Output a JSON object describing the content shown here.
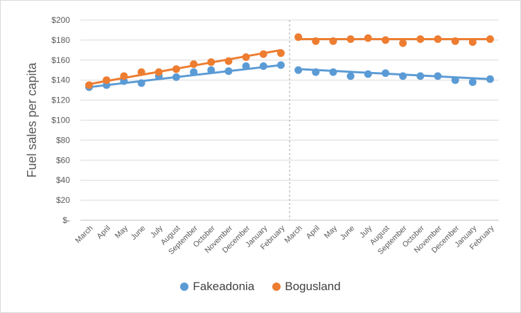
{
  "chart_data": {
    "type": "line",
    "ylabel": "Fuel sales per capita",
    "ylim": [
      0,
      200
    ],
    "yticks": [
      0,
      20,
      40,
      60,
      80,
      100,
      120,
      140,
      160,
      180,
      200
    ],
    "ytick_labels": [
      "$-",
      "$20",
      "$40",
      "$60",
      "$80",
      "$100",
      "$120",
      "$140",
      "$160",
      "$180",
      "$200"
    ],
    "categories": [
      "March",
      "April",
      "May",
      "June",
      "July",
      "August",
      "September",
      "October",
      "November",
      "December",
      "January",
      "February",
      "March",
      "April",
      "May",
      "June",
      "July",
      "August",
      "September",
      "October",
      "November",
      "December",
      "January",
      "February"
    ],
    "divider_after_index": 11,
    "legend_position": "bottom",
    "series": [
      {
        "name": "Fakeadonia",
        "color": "#5b9bd5",
        "values": [
          133,
          135,
          139,
          137,
          144,
          143,
          148,
          150,
          149,
          154,
          154,
          155,
          150,
          148,
          148,
          144,
          146,
          147,
          144,
          144,
          144,
          140,
          138,
          141
        ],
        "trend": [
          [
            0,
            133,
            11,
            155
          ],
          [
            12,
            151,
            23,
            141
          ]
        ]
      },
      {
        "name": "Bogusland",
        "color": "#ed7d31",
        "values": [
          135,
          140,
          144,
          148,
          148,
          151,
          156,
          158,
          159,
          163,
          166,
          167,
          183,
          179,
          179,
          181,
          182,
          180,
          177,
          181,
          181,
          179,
          178,
          181
        ],
        "trend": [
          [
            0,
            136,
            11,
            170
          ],
          [
            12,
            181,
            23,
            181
          ]
        ]
      }
    ]
  }
}
